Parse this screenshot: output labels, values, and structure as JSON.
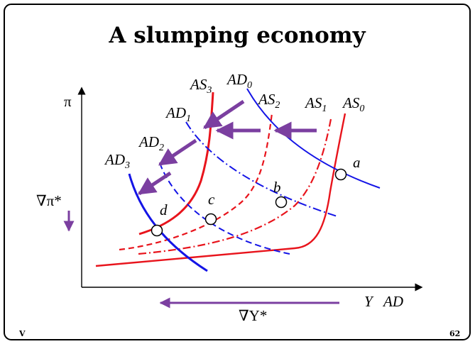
{
  "slide": {
    "title": "A slumping economy",
    "footer_left": "V",
    "page_number": "62"
  },
  "axes": {
    "y_label": "π",
    "x_label_Y": "Y",
    "x_label_AD": "AD"
  },
  "curve_labels": {
    "AS": "AS",
    "AD": "AD",
    "sub_0": "0",
    "sub_1": "1",
    "sub_2": "2",
    "sub_3": "3"
  },
  "points": {
    "a": "a",
    "b": "b",
    "c": "c",
    "d": "d"
  },
  "annotations": {
    "inflation_change": "∇π*",
    "output_change": "∇Y*"
  },
  "colors": {
    "as_curve": "#e8141c",
    "ad_curve": "#1414e6",
    "arrow": "#7b3fa0",
    "frame": "#000000"
  }
}
